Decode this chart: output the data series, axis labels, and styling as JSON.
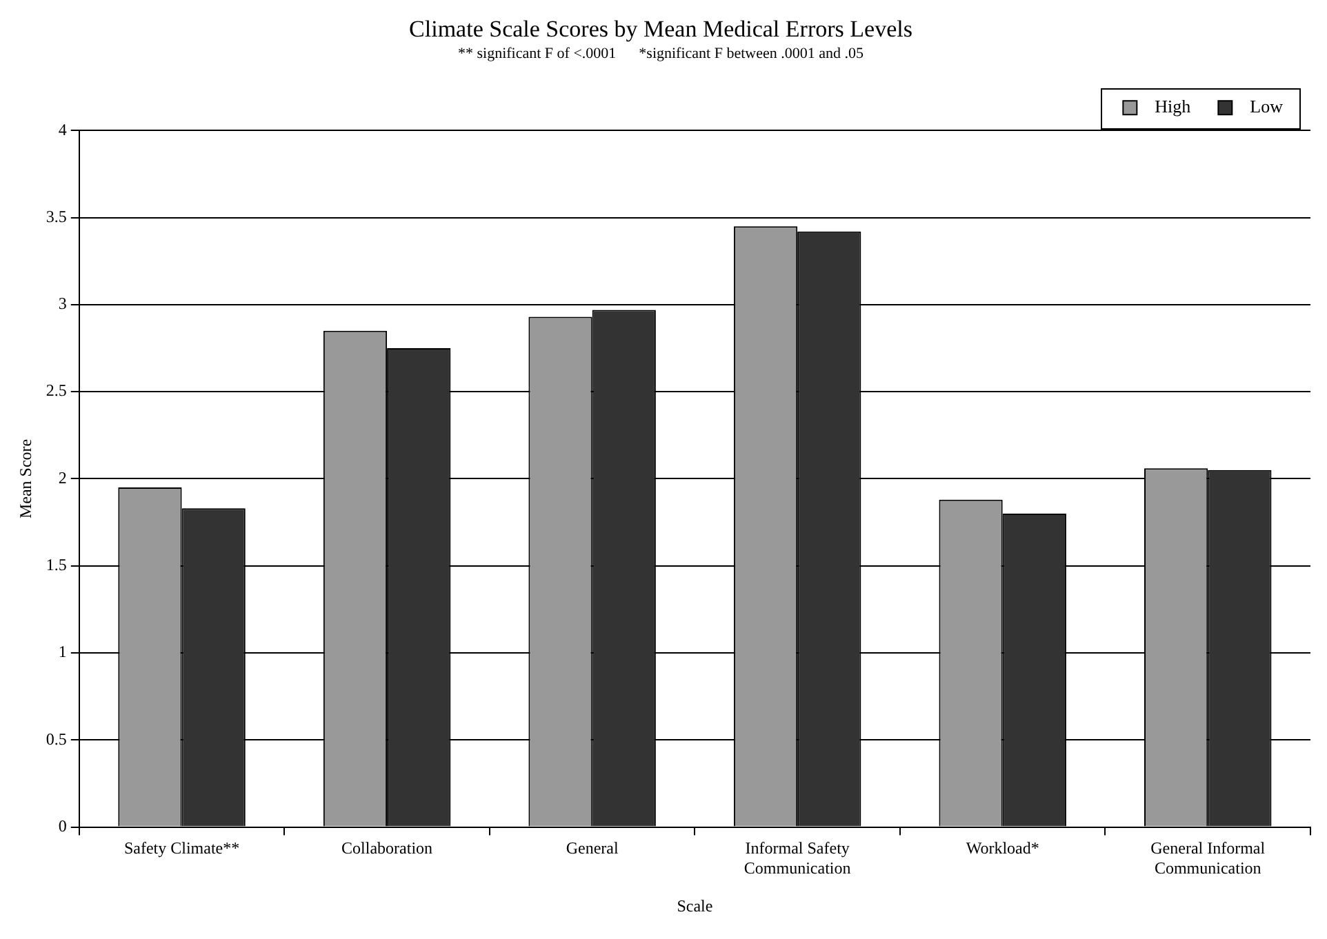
{
  "chart_data": {
    "type": "bar",
    "title": "Climate Scale Scores by Mean Medical Errors Levels",
    "subtitle": "** significant F of <.0001      *significant F between .0001 and .05",
    "xlabel": "Scale",
    "ylabel": "Mean Score",
    "categories": [
      "Safety Climate**",
      "Collaboration",
      "General",
      "Informal Safety Communication",
      "Workload*",
      "General Informal Communication"
    ],
    "series": [
      {
        "name": "High",
        "color": "#999999",
        "values": [
          1.95,
          2.85,
          2.93,
          3.45,
          1.88,
          2.06
        ]
      },
      {
        "name": "Low",
        "color": "#333333",
        "values": [
          1.83,
          2.75,
          2.97,
          3.42,
          1.8,
          2.05
        ]
      }
    ],
    "ylim": [
      0,
      4
    ],
    "yticks": [
      0,
      0.5,
      1,
      1.5,
      2,
      2.5,
      3,
      3.5,
      4
    ],
    "grid": "y",
    "legend": "top right"
  }
}
